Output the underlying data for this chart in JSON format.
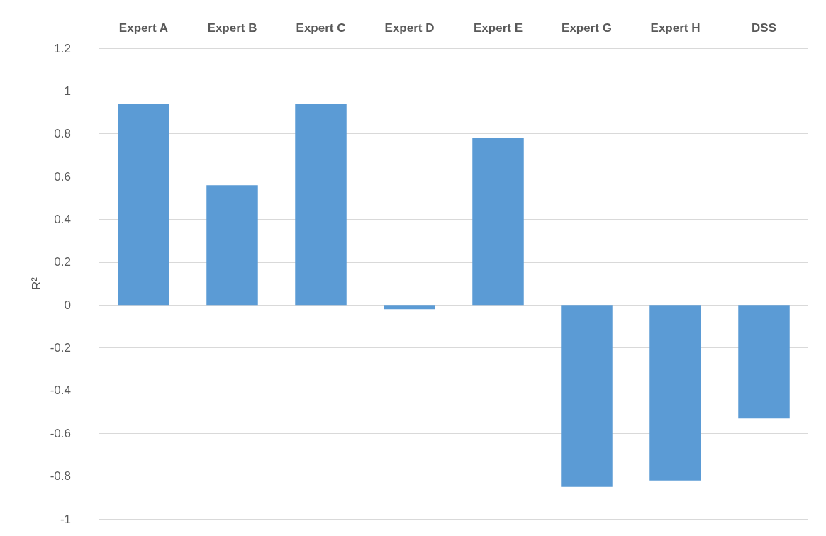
{
  "chart_data": {
    "type": "bar",
    "ylabel": "R²",
    "categories": [
      "Expert A",
      "Expert B",
      "Expert C",
      "Expert D",
      "Expert E",
      "Expert G",
      "Expert H",
      "DSS"
    ],
    "values": [
      0.94,
      0.56,
      0.94,
      -0.02,
      0.78,
      -0.85,
      -0.82,
      -0.53
    ],
    "color": "#5b9bd5",
    "ylim": [
      -1,
      1.2
    ],
    "yticks": [
      -1,
      -0.8,
      -0.6,
      -0.4,
      -0.2,
      0,
      0.2,
      0.4,
      0.6,
      0.8,
      1,
      1.2
    ],
    "grid": true
  }
}
